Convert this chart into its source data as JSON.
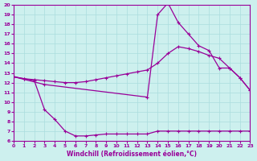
{
  "xlabel": "Windchill (Refroidissement éolien,°C)",
  "xlim": [
    0,
    23
  ],
  "ylim": [
    6,
    20
  ],
  "xticks": [
    0,
    1,
    2,
    3,
    4,
    5,
    6,
    7,
    8,
    9,
    10,
    11,
    12,
    13,
    14,
    15,
    16,
    17,
    18,
    19,
    20,
    21,
    22,
    23
  ],
  "yticks": [
    6,
    7,
    8,
    9,
    10,
    11,
    12,
    13,
    14,
    15,
    16,
    17,
    18,
    19,
    20
  ],
  "background_color": "#cdf0ee",
  "line_color": "#990099",
  "grid_color": "#aadddd",
  "line1_x": [
    0,
    1,
    2,
    3,
    4,
    5,
    6,
    7,
    8,
    9,
    10,
    11,
    12,
    13,
    14,
    15,
    16,
    17,
    18,
    19,
    20,
    21,
    22,
    23
  ],
  "line1_y": [
    12.6,
    12.4,
    12.3,
    12.2,
    12.1,
    12.0,
    12.0,
    12.1,
    12.3,
    12.5,
    12.7,
    12.9,
    13.1,
    13.3,
    14.0,
    15.0,
    15.7,
    15.5,
    15.2,
    14.8,
    14.5,
    13.5,
    12.5,
    11.2
  ],
  "line2_x": [
    0,
    3,
    13,
    14,
    15,
    16,
    17,
    18,
    19,
    20,
    21,
    22,
    23
  ],
  "line2_y": [
    12.6,
    11.8,
    10.5,
    19.0,
    20.2,
    18.2,
    17.0,
    15.8,
    15.3,
    13.5,
    13.5,
    12.5,
    11.2
  ],
  "line3_x": [
    0,
    1,
    2,
    3,
    4,
    5,
    6,
    7,
    8,
    9,
    10,
    11,
    12,
    13,
    14,
    15,
    16,
    17,
    18,
    19,
    20,
    21,
    22,
    23
  ],
  "line3_y": [
    12.6,
    12.4,
    12.2,
    9.2,
    8.2,
    7.0,
    6.5,
    6.5,
    6.6,
    6.7,
    6.7,
    6.7,
    6.7,
    6.7,
    7.0,
    7.0,
    7.0,
    7.0,
    7.0,
    7.0,
    7.0,
    7.0,
    7.0,
    7.0
  ]
}
